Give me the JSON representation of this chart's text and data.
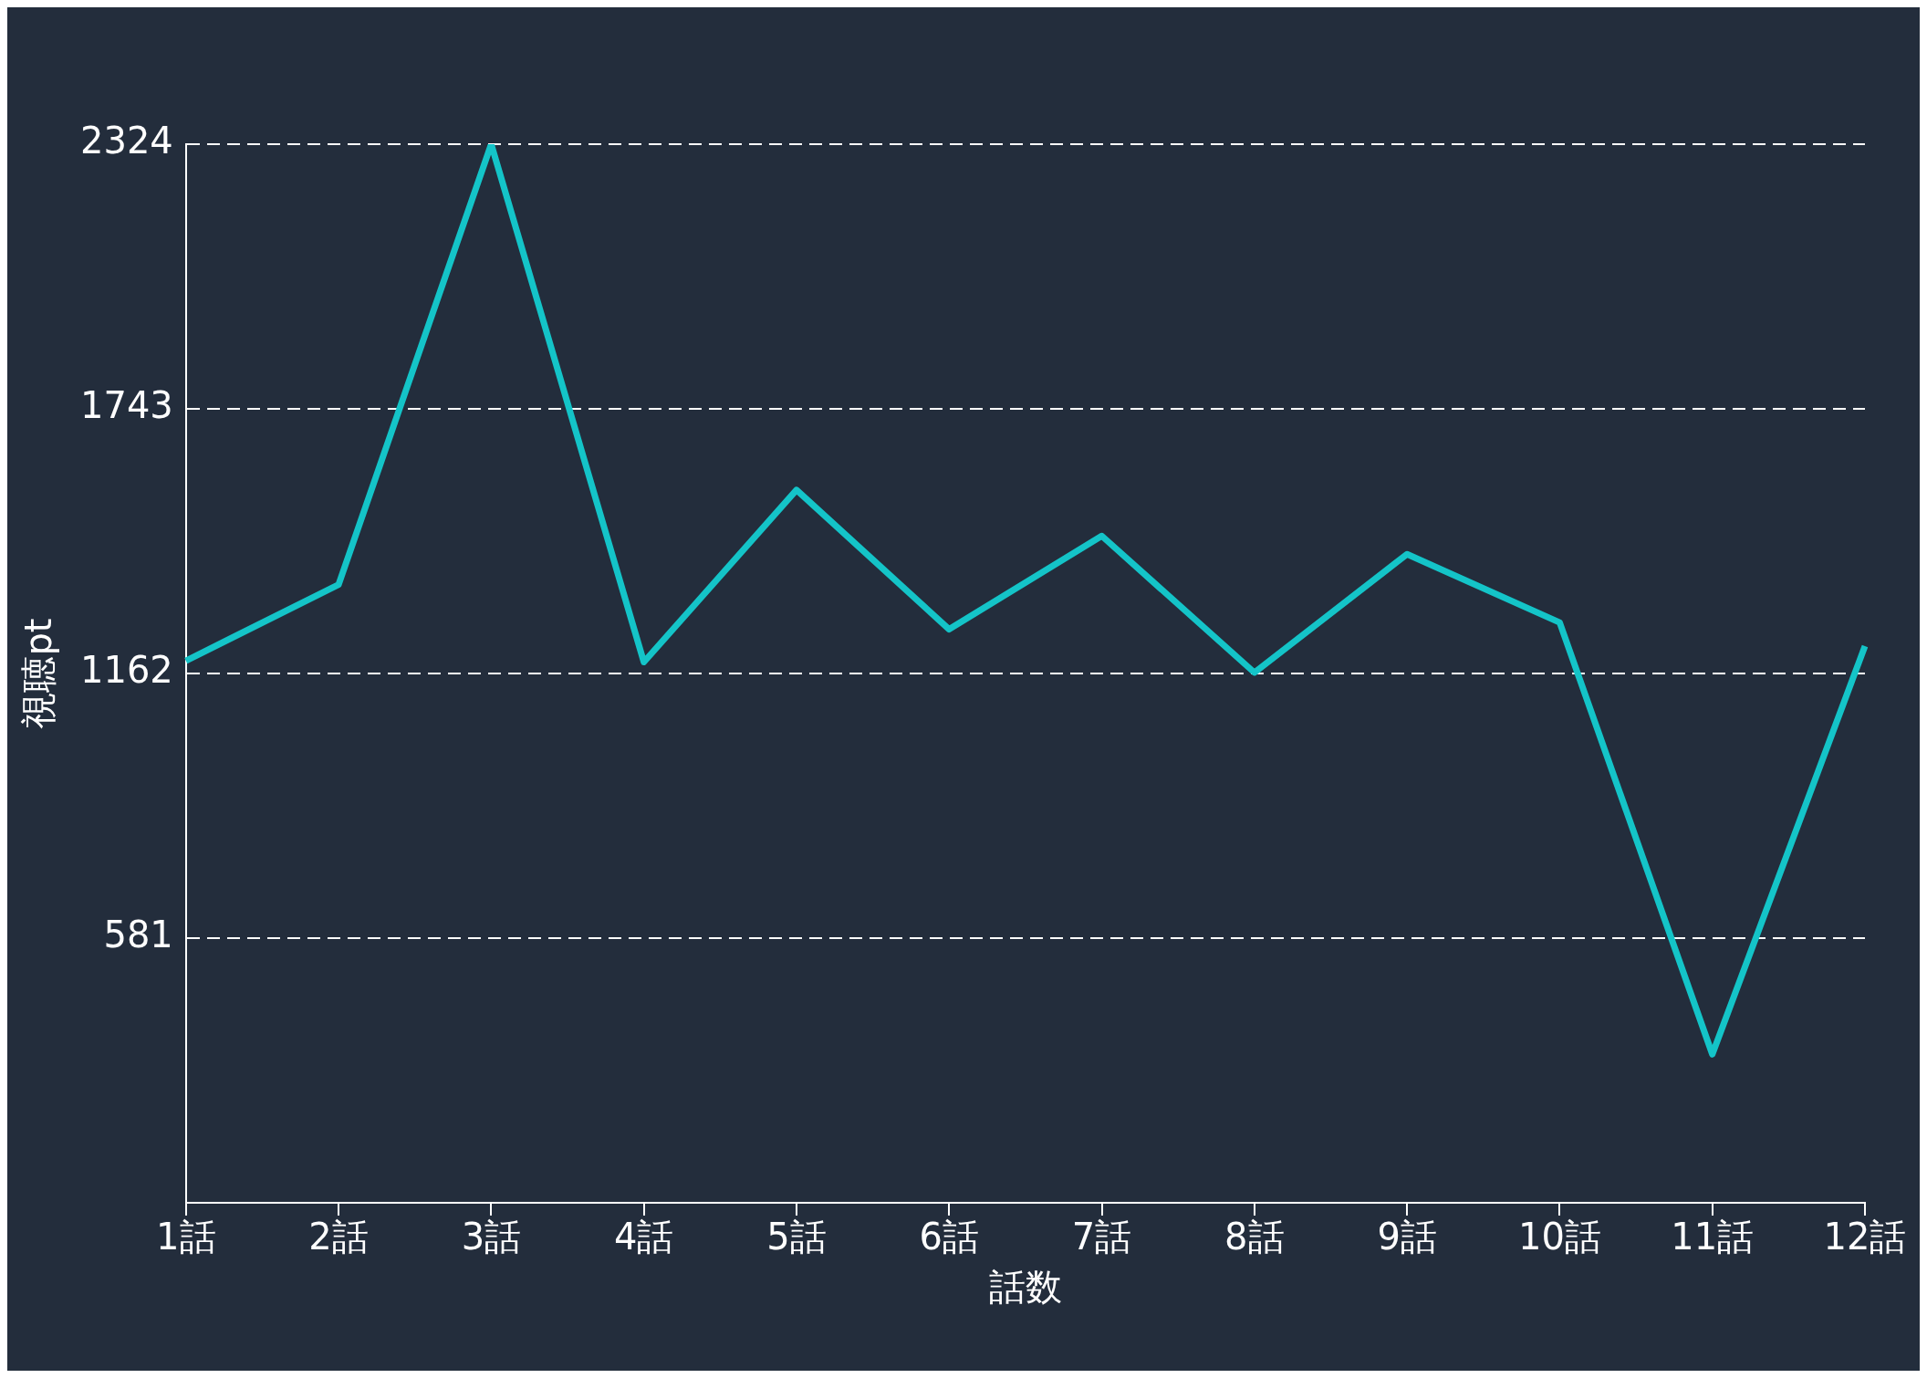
{
  "chart_data": {
    "type": "line",
    "xlabel": "話数",
    "ylabel": "視聴pt",
    "categories": [
      "1話",
      "2話",
      "3話",
      "4話",
      "5話",
      "6話",
      "7話",
      "8話",
      "9話",
      "10話",
      "11話",
      "12話"
    ],
    "series": [
      {
        "color": "#14c4c8",
        "values": [
          1190,
          1357,
          2324,
          1187,
          1565,
          1259,
          1464,
          1164,
          1424,
          1274,
          326,
          1222
        ]
      }
    ],
    "ylim": [
      0,
      2324
    ],
    "yticks": [
      581,
      1162,
      1743,
      2324
    ],
    "grid": "y",
    "legend": false,
    "marker": "none",
    "line_style": "solid"
  }
}
